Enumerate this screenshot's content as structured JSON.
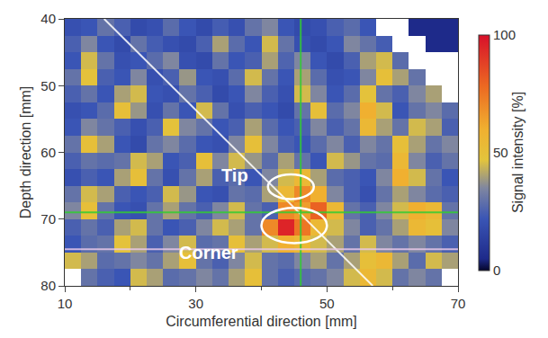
{
  "chart_data": {
    "type": "heatmap",
    "x_label": "Circumferential direction [mm]",
    "y_label": "Depth direction [mm]",
    "xlim": [
      10,
      70
    ],
    "ylim": [
      80,
      40
    ],
    "xticks": [
      10,
      30,
      50,
      70
    ],
    "yticks": [
      40,
      50,
      60,
      70,
      80
    ],
    "x": [
      11.25,
      13.75,
      16.25,
      18.75,
      21.25,
      23.75,
      26.25,
      28.75,
      31.25,
      33.75,
      36.25,
      38.75,
      41.25,
      43.75,
      46.25,
      48.75,
      51.25,
      53.75,
      56.25,
      58.75,
      61.25,
      63.75,
      66.25,
      68.75
    ],
    "y": [
      41.25,
      43.75,
      46.25,
      48.75,
      51.25,
      53.75,
      56.25,
      58.75,
      61.25,
      63.75,
      66.25,
      68.75,
      71.25,
      73.75,
      76.25,
      78.75
    ],
    "z": [
      [
        20,
        22,
        30,
        25,
        18,
        20,
        28,
        22,
        18,
        24,
        20,
        30,
        35,
        22,
        18,
        20,
        25,
        28,
        22,
        null,
        null,
        5,
        5,
        5
      ],
      [
        25,
        35,
        22,
        18,
        30,
        24,
        20,
        18,
        25,
        40,
        28,
        22,
        45,
        30,
        20,
        18,
        22,
        35,
        30,
        24,
        null,
        null,
        5,
        5
      ],
      [
        22,
        45,
        30,
        20,
        22,
        28,
        35,
        20,
        18,
        30,
        22,
        25,
        40,
        26,
        35,
        22,
        18,
        25,
        40,
        45,
        28,
        null,
        null,
        null
      ],
      [
        30,
        48,
        25,
        22,
        35,
        20,
        25,
        38,
        22,
        20,
        28,
        45,
        30,
        22,
        40,
        28,
        20,
        22,
        35,
        50,
        40,
        30,
        null,
        null
      ],
      [
        25,
        30,
        22,
        40,
        45,
        22,
        20,
        30,
        25,
        18,
        22,
        35,
        25,
        20,
        45,
        35,
        22,
        28,
        48,
        30,
        25,
        35,
        40,
        null
      ],
      [
        20,
        22,
        28,
        50,
        38,
        20,
        30,
        22,
        45,
        30,
        20,
        25,
        22,
        18,
        30,
        50,
        28,
        35,
        60,
        45,
        22,
        30,
        35,
        28
      ],
      [
        22,
        35,
        30,
        25,
        20,
        25,
        48,
        35,
        30,
        22,
        25,
        40,
        28,
        22,
        25,
        35,
        25,
        30,
        55,
        40,
        30,
        45,
        40,
        25
      ],
      [
        30,
        50,
        40,
        22,
        18,
        30,
        35,
        28,
        22,
        20,
        35,
        50,
        35,
        25,
        22,
        28,
        35,
        25,
        35,
        30,
        50,
        40,
        30,
        35
      ],
      [
        25,
        30,
        28,
        30,
        45,
        40,
        22,
        25,
        50,
        35,
        45,
        38,
        28,
        40,
        30,
        22,
        45,
        38,
        30,
        28,
        55,
        35,
        25,
        30
      ],
      [
        20,
        25,
        22,
        40,
        50,
        30,
        20,
        30,
        40,
        25,
        28,
        22,
        35,
        45,
        55,
        40,
        28,
        25,
        22,
        35,
        60,
        45,
        30,
        22
      ],
      [
        30,
        45,
        40,
        25,
        22,
        25,
        45,
        38,
        22,
        20,
        30,
        28,
        40,
        55,
        70,
        60,
        35,
        25,
        20,
        30,
        40,
        35,
        28,
        25
      ],
      [
        35,
        50,
        30,
        22,
        20,
        30,
        40,
        30,
        25,
        35,
        45,
        30,
        25,
        70,
        65,
        80,
        55,
        30,
        25,
        35,
        45,
        60,
        55,
        30
      ],
      [
        25,
        30,
        25,
        40,
        45,
        30,
        22,
        25,
        35,
        45,
        40,
        30,
        70,
        95,
        75,
        55,
        45,
        35,
        25,
        30,
        40,
        55,
        50,
        35
      ],
      [
        22,
        28,
        30,
        48,
        40,
        25,
        35,
        45,
        28,
        30,
        50,
        40,
        45,
        60,
        55,
        45,
        40,
        30,
        45,
        35,
        30,
        35,
        30,
        25
      ],
      [
        45,
        40,
        28,
        30,
        35,
        30,
        40,
        50,
        30,
        25,
        35,
        45,
        30,
        28,
        35,
        40,
        30,
        40,
        50,
        55,
        40,
        28,
        45,
        40
      ],
      [
        null,
        30,
        25,
        22,
        45,
        40,
        28,
        30,
        35,
        30,
        40,
        50,
        30,
        25,
        28,
        30,
        35,
        45,
        55,
        45,
        30,
        35,
        30,
        null
      ]
    ],
    "colorbar": {
      "title": "Signal intensity [%]",
      "range": [
        0,
        100
      ],
      "ticks": [
        0,
        50,
        100
      ]
    },
    "lines": [
      {
        "x": [
          16,
          57
        ],
        "y": [
          40,
          80
        ],
        "color": "#ffffff"
      },
      {
        "x": [
          46,
          46
        ],
        "y": [
          40,
          80
        ],
        "color": "#33cc33"
      },
      {
        "x": [
          10,
          70
        ],
        "y": [
          69,
          69
        ],
        "color": "#33cc33"
      },
      {
        "x": [
          10,
          70
        ],
        "y": [
          74.5,
          74.5
        ],
        "color": "#e8c8e8"
      }
    ],
    "annotations": [
      {
        "text": "Tip",
        "x": 36,
        "y": 63.5
      },
      {
        "text": "Corner",
        "x": 32,
        "y": 75
      }
    ],
    "ellipses": [
      {
        "x": [
          41,
          48
        ],
        "y": [
          63.3,
          67
        ]
      },
      {
        "x": [
          40,
          50
        ],
        "y": [
          68.3,
          73.6
        ]
      }
    ]
  }
}
